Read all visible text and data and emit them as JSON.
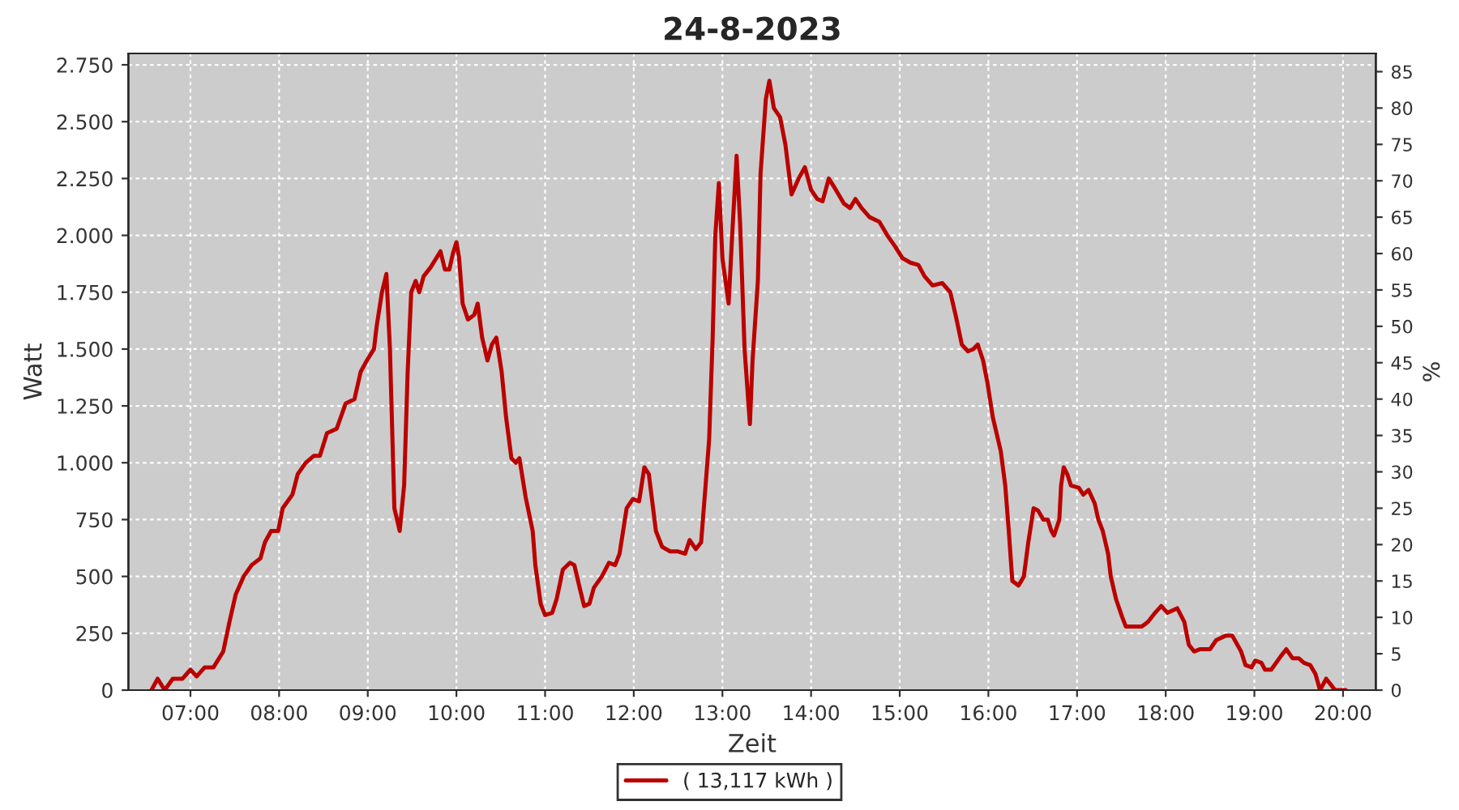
{
  "chart_data": {
    "type": "line",
    "title": "24-8-2023",
    "xlabel": "Zeit",
    "ylabel": "Watt",
    "y2label": "%",
    "x": [
      6.56,
      6.63,
      6.71,
      6.8,
      6.91,
      7.0,
      7.07,
      7.16,
      7.26,
      7.37,
      7.44,
      7.51,
      7.6,
      7.69,
      7.79,
      7.84,
      7.91,
      7.99,
      8.04,
      8.15,
      8.21,
      8.3,
      8.39,
      8.46,
      8.54,
      8.65,
      8.75,
      8.85,
      8.92,
      8.99,
      9.07,
      9.1,
      9.16,
      9.21,
      9.25,
      9.3,
      9.36,
      9.41,
      9.45,
      9.49,
      9.54,
      9.58,
      9.63,
      9.71,
      9.82,
      9.87,
      9.92,
      9.96,
      10.0,
      10.03,
      10.07,
      10.13,
      10.2,
      10.24,
      10.29,
      10.35,
      10.4,
      10.45,
      10.51,
      10.56,
      10.62,
      10.67,
      10.71,
      10.78,
      10.86,
      10.89,
      10.95,
      11.0,
      11.08,
      11.13,
      11.2,
      11.28,
      11.33,
      11.39,
      11.44,
      11.5,
      11.55,
      11.64,
      11.72,
      11.79,
      11.84,
      11.92,
      11.99,
      12.06,
      12.12,
      12.17,
      12.25,
      12.32,
      12.41,
      12.5,
      12.58,
      12.63,
      12.7,
      12.76,
      12.79,
      12.85,
      12.89,
      12.92,
      12.96,
      13.0,
      13.07,
      13.11,
      13.16,
      13.2,
      13.25,
      13.31,
      13.34,
      13.4,
      13.43,
      13.49,
      13.53,
      13.58,
      13.65,
      13.71,
      13.78,
      13.86,
      13.93,
      14.0,
      14.07,
      14.13,
      14.2,
      14.28,
      14.37,
      14.44,
      14.5,
      14.57,
      14.66,
      14.77,
      14.86,
      14.95,
      15.03,
      15.12,
      15.21,
      15.28,
      15.37,
      15.48,
      15.57,
      15.63,
      15.7,
      15.77,
      15.83,
      15.88,
      15.94,
      15.99,
      16.05,
      16.14,
      16.19,
      16.23,
      16.27,
      16.34,
      16.4,
      16.45,
      16.51,
      16.56,
      16.62,
      16.67,
      16.71,
      16.74,
      16.8,
      16.82,
      16.85,
      16.89,
      16.93,
      17.02,
      17.07,
      17.13,
      17.2,
      17.24,
      17.29,
      17.35,
      17.38,
      17.44,
      17.51,
      17.55,
      17.66,
      17.73,
      17.8,
      17.88,
      17.95,
      18.02,
      18.13,
      18.21,
      18.26,
      18.32,
      18.39,
      18.5,
      18.57,
      18.68,
      18.75,
      18.85,
      18.9,
      18.97,
      19.01,
      19.08,
      19.12,
      19.19,
      19.3,
      19.36,
      19.43,
      19.5,
      19.56,
      19.63,
      19.69,
      19.74,
      19.81,
      19.87,
      19.91,
      20.03
    ],
    "series": [
      {
        "name": "( 13,117 kWh )",
        "color": "#bb0000",
        "values": [
          0,
          50,
          0,
          50,
          50,
          90,
          60,
          100,
          100,
          170,
          300,
          420,
          500,
          550,
          580,
          650,
          700,
          700,
          800,
          860,
          950,
          1000,
          1030,
          1030,
          1130,
          1150,
          1260,
          1280,
          1400,
          1450,
          1500,
          1600,
          1750,
          1830,
          1500,
          800,
          700,
          900,
          1400,
          1750,
          1800,
          1750,
          1820,
          1860,
          1930,
          1850,
          1850,
          1920,
          1970,
          1900,
          1700,
          1630,
          1650,
          1700,
          1550,
          1450,
          1520,
          1550,
          1400,
          1200,
          1020,
          1000,
          1020,
          850,
          700,
          550,
          380,
          330,
          340,
          400,
          530,
          560,
          550,
          450,
          370,
          380,
          450,
          500,
          560,
          550,
          600,
          800,
          840,
          830,
          980,
          950,
          700,
          630,
          610,
          610,
          600,
          660,
          620,
          650,
          800,
          1100,
          1550,
          2000,
          2230,
          1900,
          1700,
          2000,
          2350,
          2050,
          1500,
          1170,
          1450,
          1800,
          2270,
          2600,
          2680,
          2560,
          2520,
          2400,
          2180,
          2250,
          2300,
          2200,
          2160,
          2150,
          2250,
          2200,
          2140,
          2120,
          2160,
          2120,
          2080,
          2060,
          2000,
          1950,
          1900,
          1880,
          1870,
          1820,
          1780,
          1790,
          1750,
          1650,
          1520,
          1490,
          1500,
          1520,
          1450,
          1350,
          1200,
          1050,
          900,
          700,
          480,
          460,
          500,
          650,
          800,
          790,
          750,
          750,
          700,
          680,
          750,
          900,
          980,
          950,
          900,
          890,
          860,
          880,
          820,
          750,
          700,
          600,
          500,
          400,
          320,
          280,
          280,
          280,
          300,
          340,
          370,
          340,
          360,
          300,
          200,
          170,
          180,
          180,
          220,
          240,
          240,
          170,
          110,
          100,
          130,
          120,
          90,
          90,
          150,
          180,
          140,
          140,
          120,
          110,
          70,
          0,
          50,
          20,
          0,
          0
        ]
      }
    ],
    "xlim": [
      6.3,
      20.37
    ],
    "xticks": [
      {
        "value": 7,
        "label": "07:00"
      },
      {
        "value": 8,
        "label": "08:00"
      },
      {
        "value": 9,
        "label": "09:00"
      },
      {
        "value": 10,
        "label": "10:00"
      },
      {
        "value": 11,
        "label": "11:00"
      },
      {
        "value": 12,
        "label": "12:00"
      },
      {
        "value": 13,
        "label": "13:00"
      },
      {
        "value": 14,
        "label": "14:00"
      },
      {
        "value": 15,
        "label": "15:00"
      },
      {
        "value": 16,
        "label": "16:00"
      },
      {
        "value": 17,
        "label": "17:00"
      },
      {
        "value": 18,
        "label": "18:00"
      },
      {
        "value": 19,
        "label": "19:00"
      },
      {
        "value": 20,
        "label": "20:00"
      }
    ],
    "ylim": [
      0,
      2800
    ],
    "yticks": [
      0,
      250,
      500,
      750,
      {
        "value": 1000,
        "label": "1.000"
      },
      {
        "value": 1250,
        "label": "1.250"
      },
      {
        "value": 1500,
        "label": "1.500"
      },
      {
        "value": 1750,
        "label": "1.750"
      },
      {
        "value": 2000,
        "label": "2.000"
      },
      {
        "value": 2250,
        "label": "2.250"
      },
      {
        "value": 2500,
        "label": "2.500"
      },
      {
        "value": 2750,
        "label": "2.750"
      }
    ],
    "y2lim": [
      0,
      87.5
    ],
    "y2ticks": [
      0,
      5,
      10,
      15,
      20,
      25,
      30,
      35,
      40,
      45,
      50,
      55,
      60,
      65,
      70,
      75,
      80,
      85
    ],
    "grid": true,
    "legend": "bottom",
    "line_style": "solid",
    "marker": "none"
  }
}
